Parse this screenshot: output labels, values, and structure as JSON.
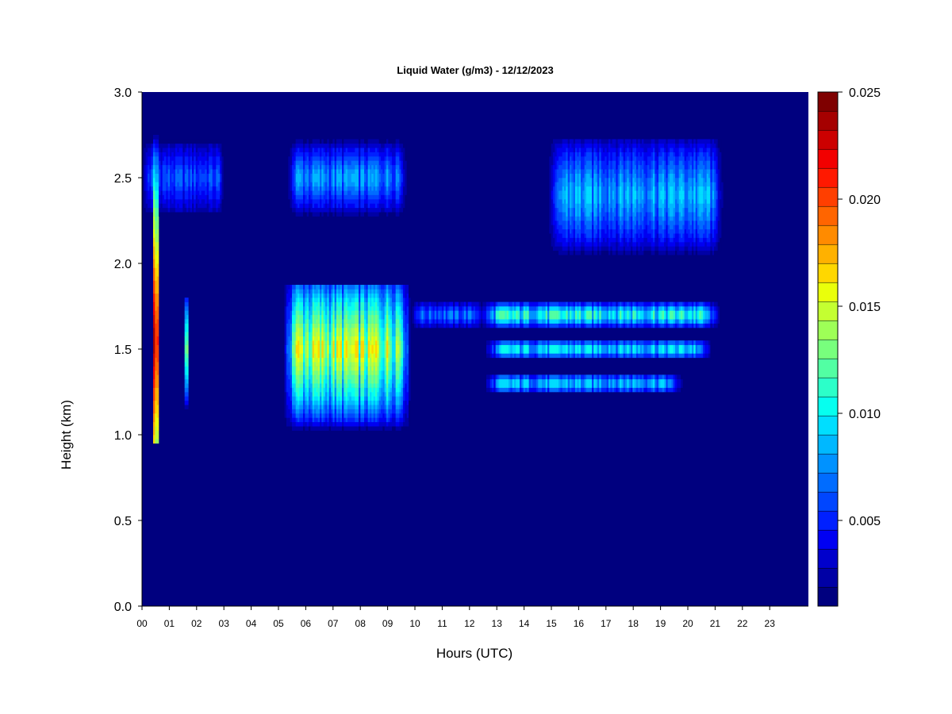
{
  "chart_data": {
    "type": "heatmap",
    "title": "Liquid Water (g/m3) - 12/12/2023",
    "xlabel": "Hours (UTC)",
    "ylabel": "Height (km)",
    "xlim": [
      0,
      24
    ],
    "ylim": [
      0,
      3.0
    ],
    "x_ticks": [
      {
        "value": 0,
        "label": "00"
      },
      {
        "value": 1,
        "label": "01"
      },
      {
        "value": 2,
        "label": "02"
      },
      {
        "value": 3,
        "label": "03"
      },
      {
        "value": 4,
        "label": "04"
      },
      {
        "value": 5,
        "label": "05"
      },
      {
        "value": 6,
        "label": "06"
      },
      {
        "value": 7,
        "label": "07"
      },
      {
        "value": 8,
        "label": "08"
      },
      {
        "value": 9,
        "label": "09"
      },
      {
        "value": 10,
        "label": "10"
      },
      {
        "value": 11,
        "label": "11"
      },
      {
        "value": 12,
        "label": "12"
      },
      {
        "value": 13,
        "label": "13"
      },
      {
        "value": 14,
        "label": "14"
      },
      {
        "value": 15,
        "label": "15"
      },
      {
        "value": 16,
        "label": "16"
      },
      {
        "value": 17,
        "label": "17"
      },
      {
        "value": 18,
        "label": "18"
      },
      {
        "value": 19,
        "label": "19"
      },
      {
        "value": 20,
        "label": "20"
      },
      {
        "value": 21,
        "label": "21"
      },
      {
        "value": 22,
        "label": "22"
      },
      {
        "value": 23,
        "label": "23"
      }
    ],
    "y_ticks": [
      {
        "value": 0.0,
        "label": "0.0"
      },
      {
        "value": 0.5,
        "label": "0.5"
      },
      {
        "value": 1.0,
        "label": "1.0"
      },
      {
        "value": 1.5,
        "label": "1.5"
      },
      {
        "value": 2.0,
        "label": "2.0"
      },
      {
        "value": 2.5,
        "label": "2.5"
      },
      {
        "value": 3.0,
        "label": "3.0"
      }
    ],
    "colorbar": {
      "range": [
        0.001,
        0.025
      ],
      "ticks": [
        {
          "value": 0.005,
          "label": "0.005"
        },
        {
          "value": 0.01,
          "label": "0.010"
        },
        {
          "value": 0.015,
          "label": "0.015"
        },
        {
          "value": 0.02,
          "label": "0.020"
        },
        {
          "value": 0.025,
          "label": "0.025"
        }
      ],
      "colors": [
        "#00007f",
        "#0000a5",
        "#0000cc",
        "#0000f2",
        "#0020ff",
        "#0046ff",
        "#006cff",
        "#0092ff",
        "#00b8ff",
        "#00deff",
        "#06ffef",
        "#2cffc9",
        "#52ffa3",
        "#78ff7d",
        "#9eff57",
        "#c4ff31",
        "#eaff0b",
        "#ffd700",
        "#ffb100",
        "#ff8b00",
        "#ff6500",
        "#ff3f00",
        "#ff1900",
        "#f20000",
        "#cc0000",
        "#a50000",
        "#7f0000"
      ]
    },
    "background_value": 0.001,
    "cloud_regions": [
      {
        "name": "spike-00h",
        "x": [
          0.4,
          0.62
        ],
        "y": [
          0.95,
          2.75
        ],
        "peak": 0.024,
        "center_y": 1.55
      },
      {
        "name": "spike-0140h",
        "x": [
          1.55,
          1.7
        ],
        "y": [
          1.15,
          1.8
        ],
        "peak": 0.013,
        "center_y": 1.5
      },
      {
        "name": "upper-layer-00-03h",
        "x": [
          0.0,
          3.0
        ],
        "y": [
          2.28,
          2.72
        ],
        "peak": 0.007,
        "center_y": 2.5
      },
      {
        "name": "upper-layer-05-10h",
        "x": [
          5.2,
          9.6
        ],
        "y": [
          2.28,
          2.72
        ],
        "peak": 0.009,
        "center_y": 2.5
      },
      {
        "name": "main-layer-05-10h",
        "x": [
          5.1,
          9.7
        ],
        "y": [
          1.03,
          1.88
        ],
        "peak": 0.017,
        "center_y": 1.5
      },
      {
        "name": "thin-layer-10-12h",
        "x": [
          9.7,
          12.3
        ],
        "y": [
          1.62,
          1.78
        ],
        "peak": 0.008,
        "center_y": 1.7
      },
      {
        "name": "mid-layer-12-20h",
        "x": [
          12.1,
          20.9
        ],
        "y": [
          1.62,
          1.78
        ],
        "peak": 0.013,
        "center_y": 1.7
      },
      {
        "name": "mid-layer-lower-12-20h",
        "x": [
          12.3,
          20.6
        ],
        "y": [
          1.44,
          1.56
        ],
        "peak": 0.012,
        "center_y": 1.5
      },
      {
        "name": "low-layer-12-19h",
        "x": [
          12.3,
          19.5
        ],
        "y": [
          1.24,
          1.36
        ],
        "peak": 0.011,
        "center_y": 1.3
      },
      {
        "name": "upper-layer-15-21h",
        "x": [
          14.6,
          21.0
        ],
        "y": [
          2.05,
          2.72
        ],
        "peak": 0.01,
        "center_y": 2.4
      }
    ]
  }
}
